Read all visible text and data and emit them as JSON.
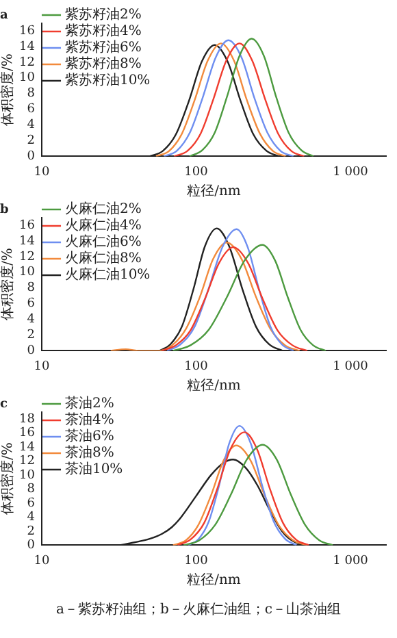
{
  "chart_data": [
    {
      "type": "line",
      "title": "a",
      "xlabel": "粒径/nm",
      "ylabel": "体积密度/%",
      "log": "x",
      "xlim": [
        10,
        1700
      ],
      "xticks": [
        10,
        100,
        1000
      ],
      "ylim": [
        0,
        17
      ],
      "yticks": [
        0,
        2,
        4,
        6,
        8,
        10,
        12,
        14,
        16
      ],
      "legend": "top left",
      "marker": "none",
      "line_style": "solid",
      "series": [
        {
          "name": "紫苏籽油2%",
          "color": "#4c9a3f",
          "x": [
            91,
            110,
            132,
            158,
            191,
            229,
            275,
            331,
            398,
            479,
            575
          ],
          "values": [
            0,
            0.8,
            3,
            7.5,
            12.8,
            15,
            12.8,
            7.5,
            3,
            0.8,
            0
          ]
        },
        {
          "name": "紫苏籽油4%",
          "color": "#f03c2e",
          "x": [
            72,
            88,
            107,
            129,
            157,
            191,
            231,
            281,
            340,
            413,
            501
          ],
          "values": [
            0,
            0.7,
            2.9,
            7.2,
            12.2,
            14.4,
            12.2,
            7.2,
            2.9,
            0.7,
            0
          ]
        },
        {
          "name": "紫苏籽油6%",
          "color": "#6e8ef0",
          "x": [
            62,
            75,
            91,
            110,
            134,
            162,
            197,
            239,
            290,
            352,
            427
          ],
          "values": [
            0,
            0.7,
            3,
            7.4,
            12.6,
            14.8,
            12.6,
            7.4,
            3,
            0.7,
            0
          ]
        },
        {
          "name": "紫苏籽油8%",
          "color": "#f28a3c",
          "x": [
            55,
            67,
            81,
            98,
            119,
            145,
            176,
            213,
            259,
            314,
            380
          ],
          "values": [
            0,
            0.7,
            2.9,
            7.2,
            12.2,
            14.4,
            12.2,
            7.2,
            2.9,
            0.7,
            0
          ]
        },
        {
          "name": "紫苏籽油10%",
          "color": "#222222",
          "x": [
            50,
            61,
            74,
            90,
            109,
            132,
            160,
            194,
            235,
            286,
            347
          ],
          "values": [
            0,
            0.7,
            2.8,
            7.1,
            12.1,
            14.2,
            12.1,
            7.1,
            2.8,
            0.7,
            0
          ]
        }
      ]
    },
    {
      "type": "line",
      "title": "b",
      "xlabel": "粒径/nm",
      "ylabel": "体积密度/%",
      "log": "x",
      "xlim": [
        10,
        1700
      ],
      "xticks": [
        10,
        100,
        1000
      ],
      "ylim": [
        0,
        17
      ],
      "yticks": [
        0,
        2,
        4,
        6,
        8,
        10,
        12,
        14,
        16
      ],
      "legend": "top left",
      "marker": "none",
      "line_style": "solid",
      "series": [
        {
          "name": "火麻仁油2%",
          "color": "#4c9a3f",
          "x": [
            71,
            92,
            121,
            158,
            206,
            269,
            325,
            393,
            474,
            573,
            692
          ],
          "values": [
            0,
            0.7,
            2.7,
            6.8,
            11.5,
            13.5,
            11.5,
            6.8,
            2.7,
            0.7,
            0
          ]
        },
        {
          "name": "火麻仁油4%",
          "color": "#f03c2e",
          "x": [
            60,
            74,
            92,
            114,
            141,
            174,
            217,
            270,
            337,
            421,
            525
          ],
          "values": [
            0,
            0.7,
            2.6,
            6.6,
            11.2,
            13.2,
            11.2,
            6.6,
            2.6,
            0.7,
            0
          ]
        },
        {
          "name": "火麻仁油6%",
          "color": "#6e8ef0",
          "x": [
            65,
            79,
            98,
            120,
            148,
            183,
            216,
            256,
            303,
            360,
            427
          ],
          "values": [
            0,
            0.8,
            3.1,
            7.8,
            13.2,
            15.5,
            13.2,
            7.8,
            3.1,
            0.8,
            0
          ]
        },
        {
          "name": "火麻仁油8%",
          "color": "#f28a3c",
          "x": [
            28,
            35,
            42,
            58,
            70,
            86,
            106,
            129,
            158,
            197,
            244,
            303,
            377,
            468
          ],
          "values": [
            0,
            0.2,
            0,
            0,
            0.7,
            2.8,
            6.9,
            11.7,
            13.8,
            11.7,
            6.9,
            2.8,
            0.7,
            0
          ]
        },
        {
          "name": "火麻仁油10%",
          "color": "#222222",
          "x": [
            58,
            68,
            81,
            96,
            114,
            136,
            164,
            200,
            244,
            298,
            363
          ],
          "values": [
            0,
            0.8,
            3.1,
            7.8,
            13.3,
            15.6,
            13.3,
            7.8,
            3.1,
            0.8,
            0
          ]
        }
      ]
    },
    {
      "type": "line",
      "title": "c",
      "xlabel": "粒径/nm",
      "ylabel": "体积密度/%",
      "log": "x",
      "xlim": [
        10,
        1700
      ],
      "xticks": [
        10,
        100,
        1000
      ],
      "ylim": [
        0,
        19
      ],
      "yticks": [
        0,
        2,
        4,
        6,
        8,
        10,
        12,
        14,
        16,
        18
      ],
      "legend": "top left",
      "marker": "none",
      "line_style": "solid",
      "annotations": [
        "a－紫苏籽油组；b－火麻仁油组；c－山茶油组"
      ],
      "series": [
        {
          "name": "茶油2%",
          "color": "#4c9a3f",
          "x": [
            83,
            105,
            133,
            168,
            213,
            270,
            333,
            411,
            508,
            628,
            768
          ],
          "values": [
            0,
            0.7,
            2.9,
            7.2,
            12.2,
            14.3,
            12.2,
            7.2,
            2.9,
            0.7,
            0
          ]
        },
        {
          "name": "茶油4%",
          "color": "#f03c2e",
          "x": [
            76,
            92,
            113,
            137,
            167,
            206,
            248,
            301,
            365,
            443,
            537
          ],
          "values": [
            0,
            0.8,
            3.2,
            8,
            13.7,
            16.1,
            13.7,
            8,
            3.2,
            0.8,
            0
          ]
        },
        {
          "name": "茶油6%",
          "color": "#6e8ef0",
          "x": [
            89,
            104,
            121,
            141,
            164,
            191,
            226,
            268,
            318,
            377,
            447
          ],
          "values": [
            0,
            0.9,
            3.4,
            8.5,
            14.5,
            17,
            14.5,
            8.5,
            3.4,
            0.9,
            0
          ]
        },
        {
          "name": "茶油8%",
          "color": "#f28a3c",
          "x": [
            71,
            86,
            103,
            125,
            151,
            182,
            225,
            278,
            344,
            425,
            525
          ],
          "values": [
            0,
            0.7,
            2.8,
            7.1,
            12.1,
            14.2,
            12.1,
            7.1,
            2.8,
            0.7,
            0
          ]
        },
        {
          "name": "茶油10%",
          "color": "#222222",
          "x": [
            32,
            40,
            50,
            60,
            70,
            80,
            100,
            125,
            150,
            174,
            210,
            250,
            300,
            360,
            430,
            537
          ],
          "values": [
            0,
            0.4,
            0.9,
            1.6,
            2.6,
            4,
            7,
            10,
            11.7,
            12.2,
            11,
            8.5,
            5,
            2,
            0.5,
            0
          ]
        }
      ]
    }
  ]
}
